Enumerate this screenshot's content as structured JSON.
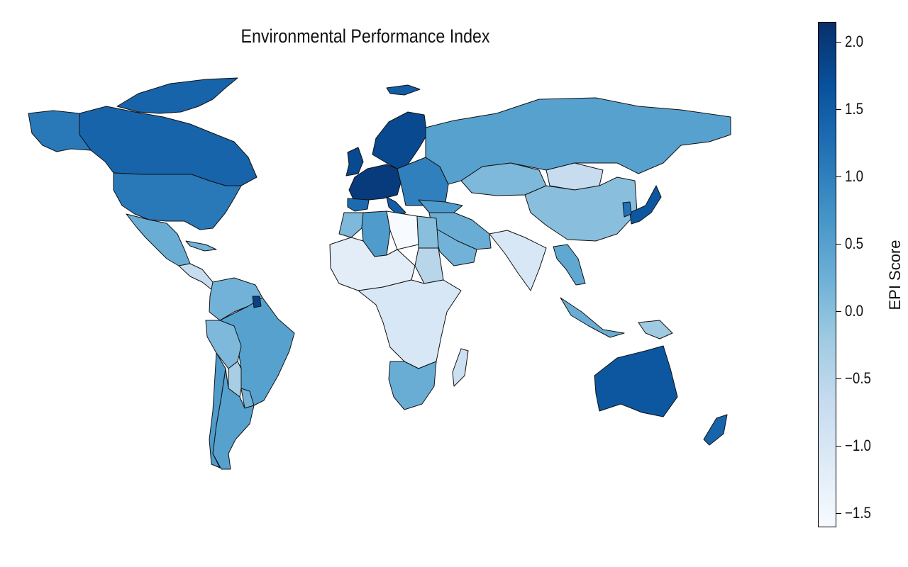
{
  "title": "Environmental Performance Index",
  "colorbar": {
    "label": "EPI Score",
    "min": -1.6,
    "max": 2.15,
    "ticks": [
      {
        "value": 2.0,
        "label": "2.0"
      },
      {
        "value": 1.5,
        "label": "1.5"
      },
      {
        "value": 1.0,
        "label": "1.0"
      },
      {
        "value": 0.5,
        "label": "0.5"
      },
      {
        "value": 0.0,
        "label": "0.0"
      },
      {
        "value": -0.5,
        "label": "−0.5"
      },
      {
        "value": -1.0,
        "label": "−1.0"
      },
      {
        "value": -1.5,
        "label": "−1.5"
      }
    ],
    "colormap": "Blues",
    "colors": [
      "#f7fbff",
      "#deebf7",
      "#c6dbef",
      "#9ecae1",
      "#6baed6",
      "#4292c6",
      "#2171b5",
      "#08519c",
      "#08306b"
    ]
  },
  "chart_data": {
    "type": "choropleth",
    "title": "Environmental Performance Index",
    "value_label": "EPI Score",
    "value_range": [
      -1.6,
      2.15
    ],
    "regions": [
      {
        "name": "Canada",
        "value": 1.4
      },
      {
        "name": "Greenland",
        "value": 1.4
      },
      {
        "name": "Alaska (USA)",
        "value": 1.1
      },
      {
        "name": "United States",
        "value": 1.1
      },
      {
        "name": "Mexico",
        "value": 0.3
      },
      {
        "name": "Central America",
        "value": -0.7
      },
      {
        "name": "Cuba",
        "value": 0.2
      },
      {
        "name": "Colombia / Venezuela",
        "value": 0.2
      },
      {
        "name": "Brazil",
        "value": 0.5
      },
      {
        "name": "Peru / Ecuador",
        "value": 0.1
      },
      {
        "name": "Bolivia",
        "value": -0.3
      },
      {
        "name": "Paraguay",
        "value": 0.2
      },
      {
        "name": "Argentina",
        "value": 0.5
      },
      {
        "name": "Chile",
        "value": 0.6
      },
      {
        "name": "French Guiana",
        "value": 1.9
      },
      {
        "name": "Iceland",
        "value": 1.5
      },
      {
        "name": "United Kingdom",
        "value": 1.8
      },
      {
        "name": "Scandinavia",
        "value": 1.8
      },
      {
        "name": "France / Germany",
        "value": 2.0
      },
      {
        "name": "Spain",
        "value": 1.3
      },
      {
        "name": "Italy",
        "value": 1.5
      },
      {
        "name": "Eastern Europe",
        "value": 1.0
      },
      {
        "name": "Turkey",
        "value": 0.6
      },
      {
        "name": "Russia",
        "value": 0.5
      },
      {
        "name": "Kazakhstan",
        "value": 0.1
      },
      {
        "name": "Mongolia",
        "value": -0.7
      },
      {
        "name": "China",
        "value": 0.0
      },
      {
        "name": "Japan",
        "value": 1.6
      },
      {
        "name": "Korea",
        "value": 1.2
      },
      {
        "name": "Middle East",
        "value": 0.3
      },
      {
        "name": "Saudi Arabia",
        "value": 0.2
      },
      {
        "name": "India",
        "value": -1.0
      },
      {
        "name": "Southeast Asia",
        "value": 0.4
      },
      {
        "name": "Indonesia",
        "value": 0.3
      },
      {
        "name": "Papua / Philippines",
        "value": -0.2
      },
      {
        "name": "Australia",
        "value": 1.6
      },
      {
        "name": "New Zealand",
        "value": 1.4
      },
      {
        "name": "Morocco",
        "value": 0.1
      },
      {
        "name": "Algeria",
        "value": 0.6
      },
      {
        "name": "Libya",
        "value": -1.6
      },
      {
        "name": "Egypt",
        "value": 0.0
      },
      {
        "name": "Sudan",
        "value": -0.5
      },
      {
        "name": "West Africa",
        "value": -1.2
      },
      {
        "name": "Central / East Africa",
        "value": -1.0
      },
      {
        "name": "South Africa",
        "value": 0.3
      },
      {
        "name": "Madagascar",
        "value": -0.8
      }
    ]
  }
}
